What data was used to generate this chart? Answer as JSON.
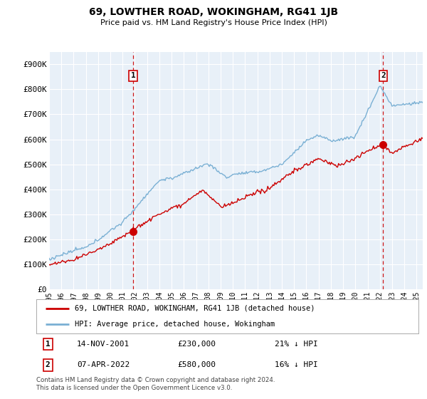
{
  "title": "69, LOWTHER ROAD, WOKINGHAM, RG41 1JB",
  "subtitle": "Price paid vs. HM Land Registry's House Price Index (HPI)",
  "ylabel_ticks": [
    "£0",
    "£100K",
    "£200K",
    "£300K",
    "£400K",
    "£500K",
    "£600K",
    "£700K",
    "£800K",
    "£900K"
  ],
  "ytick_values": [
    0,
    100000,
    200000,
    300000,
    400000,
    500000,
    600000,
    700000,
    800000,
    900000
  ],
  "ylim": [
    0,
    950000
  ],
  "xlim_start": 1995.0,
  "xlim_end": 2025.5,
  "xticks": [
    1995,
    1996,
    1997,
    1998,
    1999,
    2000,
    2001,
    2002,
    2003,
    2004,
    2005,
    2006,
    2007,
    2008,
    2009,
    2010,
    2011,
    2012,
    2013,
    2014,
    2015,
    2016,
    2017,
    2018,
    2019,
    2020,
    2021,
    2022,
    2023,
    2024,
    2025
  ],
  "marker1_x": 2001.87,
  "marker1_y": 230000,
  "marker1_label": "1",
  "marker1_date": "14-NOV-2001",
  "marker1_price": "£230,000",
  "marker1_note": "21% ↓ HPI",
  "marker2_x": 2022.27,
  "marker2_y": 580000,
  "marker2_label": "2",
  "marker2_date": "07-APR-2022",
  "marker2_price": "£580,000",
  "marker2_note": "16% ↓ HPI",
  "line_house_color": "#cc0000",
  "line_hpi_color": "#7ab0d4",
  "vline_color": "#cc0000",
  "dot_color": "#cc0000",
  "legend_house_label": "69, LOWTHER ROAD, WOKINGHAM, RG41 1JB (detached house)",
  "legend_hpi_label": "HPI: Average price, detached house, Wokingham",
  "footer": "Contains HM Land Registry data © Crown copyright and database right 2024.\nThis data is licensed under the Open Government Licence v3.0.",
  "background_color": "#ffffff",
  "plot_bg_color": "#e8f0f8",
  "grid_color": "#ffffff"
}
